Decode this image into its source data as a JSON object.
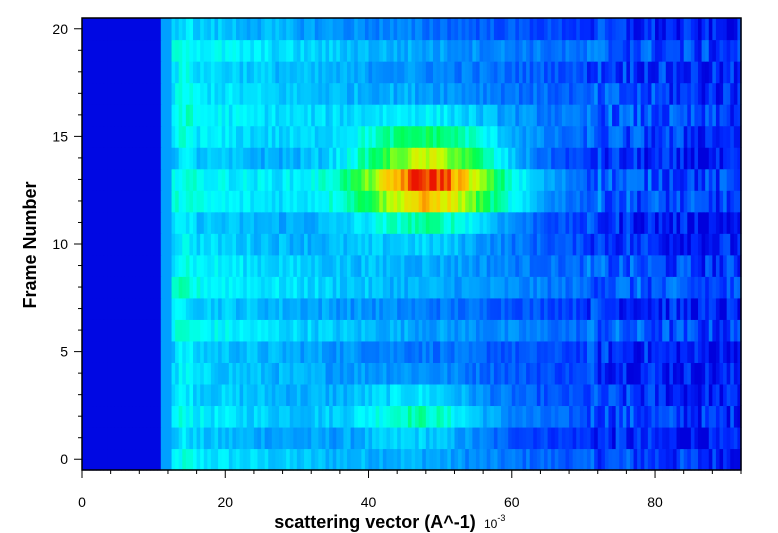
{
  "chart_data": {
    "type": "heatmap",
    "title": "",
    "xlabel": "scattering vector (A^-1)",
    "x_exponent_label": "10",
    "x_exponent_power": "-3",
    "ylabel": "Frame Number",
    "xlim": [
      0,
      92
    ],
    "ylim": [
      -0.5,
      20.5
    ],
    "x_ticks": [
      0,
      20,
      40,
      60,
      80
    ],
    "y_ticks": [
      0,
      5,
      10,
      15,
      20
    ],
    "frames": 21,
    "colormap": "rainbow (blue-cyan-green-yellow-red)",
    "intensity_range": [
      0,
      1
    ],
    "features": [
      {
        "label": "beamstop shadow",
        "x_range": [
          0,
          11
        ],
        "frames": [
          0,
          20
        ],
        "intensity": 0.0
      },
      {
        "label": "main peak",
        "x_center": 48.5,
        "frame_center": 13,
        "x_width": 11,
        "frame_width": 2.3,
        "peak_intensity": 0.98
      },
      {
        "label": "secondary peak",
        "x_center": 47,
        "frame_center": 2,
        "x_width": 9,
        "frame_width": 1.5,
        "peak_intensity": 0.55
      }
    ],
    "colors": {
      "low": "#0000ff",
      "mid_low": "#00ffff",
      "mid": "#00ff00",
      "mid_high": "#ffff00",
      "high": "#ff0000"
    }
  }
}
